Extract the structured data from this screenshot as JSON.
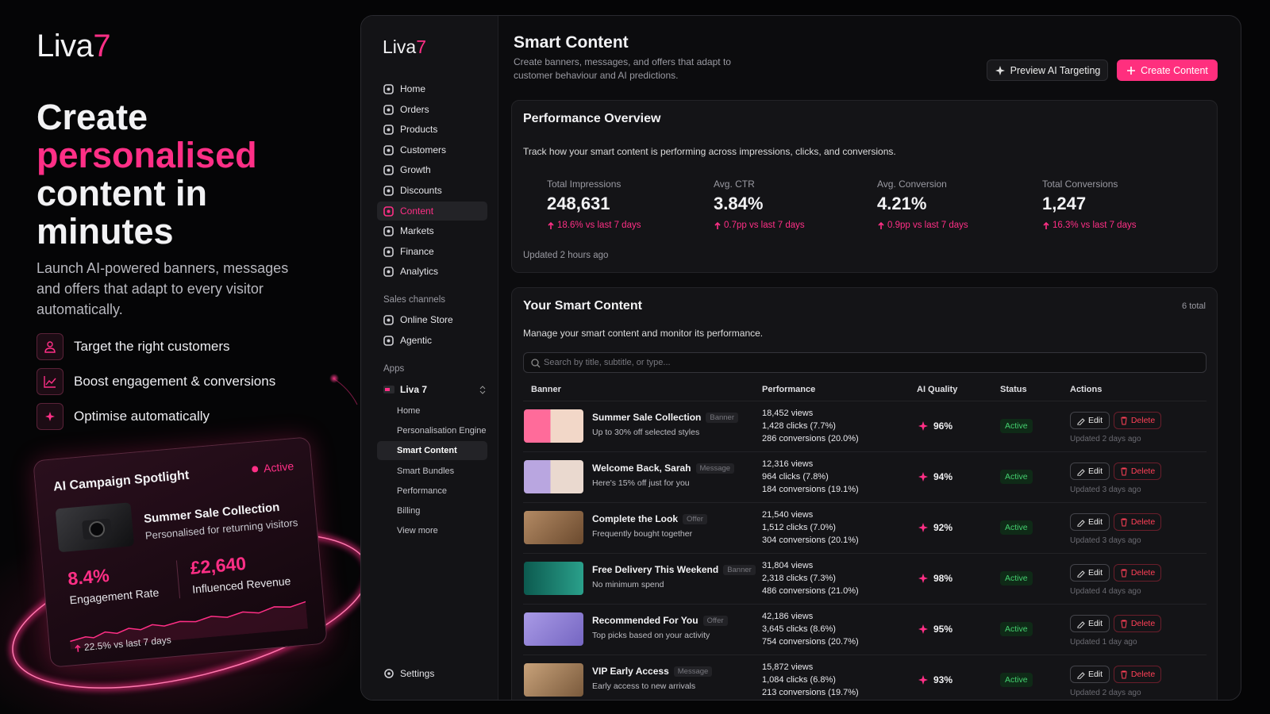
{
  "promo": {
    "logo": "Liva",
    "logo_accent": "7",
    "headline": [
      "Create",
      "personalised",
      "content in",
      "minutes"
    ],
    "description": "Launch AI-powered banners, messages and offers that adapt to every visitor automatically.",
    "features": [
      "Target the right customers",
      "Boost engagement & conversions",
      "Optimise automatically"
    ],
    "spotlight": {
      "title": "AI Campaign Spotlight",
      "status": "Active",
      "name": "Summer Sale Collection",
      "subtitle": "Personalised for returning visitors",
      "metrics": [
        {
          "value": "8.4%",
          "label": "Engagement Rate"
        },
        {
          "value": "£2,640",
          "label": "Influenced Revenue"
        }
      ],
      "change": "22.5% vs last 7 days"
    }
  },
  "panel": {
    "sidebar": {
      "logo": "Liva",
      "logo_accent": "7",
      "nav": [
        {
          "label": "Home"
        },
        {
          "label": "Orders"
        },
        {
          "label": "Products"
        },
        {
          "label": "Customers"
        },
        {
          "label": "Growth"
        },
        {
          "label": "Discounts"
        },
        {
          "label": "Content",
          "active": true
        },
        {
          "label": "Markets"
        },
        {
          "label": "Finance"
        },
        {
          "label": "Analytics"
        }
      ],
      "sales_channels": {
        "title": "Sales channels",
        "items": [
          "Online Store",
          "Agentic"
        ]
      },
      "apps": {
        "title": "Apps",
        "app": "Liva 7",
        "items": [
          {
            "label": "Home"
          },
          {
            "label": "Personalisation Engine"
          },
          {
            "label": "Smart Content",
            "active": true
          },
          {
            "label": "Smart Bundles"
          },
          {
            "label": "Performance"
          },
          {
            "label": "Billing"
          },
          {
            "label": "View more"
          }
        ]
      },
      "settings": "Settings"
    },
    "header": {
      "title": "Smart Content",
      "description": "Create banners, messages, and offers that adapt to customer behaviour and AI predictions.",
      "preview_button": "Preview AI Targeting",
      "create_button": "Create Content"
    },
    "overview": {
      "title": "Performance Overview",
      "description": "Track how your smart content is performing across impressions, clicks, and conversions.",
      "stats": [
        {
          "label": "Total Impressions",
          "value": "248,631",
          "change": "18.6% vs last 7 days"
        },
        {
          "label": "Avg. CTR",
          "value": "3.84%",
          "change": "0.7pp vs last 7 days"
        },
        {
          "label": "Avg. Conversion",
          "value": "4.21%",
          "change": "0.9pp vs last 7 days"
        },
        {
          "label": "Total Conversions",
          "value": "1,247",
          "change": "16.3% vs last 7 days"
        }
      ],
      "updated": "Updated 2 hours ago"
    },
    "content": {
      "title": "Your Smart Content",
      "total": "6 total",
      "description": "Manage your smart content and monitor its performance.",
      "search_placeholder": "Search by title, subtitle, or type...",
      "columns": [
        "Banner",
        "Performance",
        "AI Quality",
        "Status",
        "Actions"
      ],
      "actions": {
        "edit": "Edit",
        "delete": "Delete"
      },
      "rows": [
        {
          "title": "Summer Sale Collection",
          "tag": "Banner",
          "subtitle": "Up to 30% off selected styles",
          "views": "18,452 views",
          "clicks": "1,428 clicks (7.7%)",
          "conversions": "286 conversions (20.0%)",
          "quality": "96%",
          "status": "Active",
          "updated": "Updated 2 days ago"
        },
        {
          "title": "Welcome Back, Sarah",
          "tag": "Message",
          "subtitle": "Here's 15% off just for you",
          "views": "12,316 views",
          "clicks": "964 clicks (7.8%)",
          "conversions": "184 conversions (19.1%)",
          "quality": "94%",
          "status": "Active",
          "updated": "Updated 3 days ago"
        },
        {
          "title": "Complete the Look",
          "tag": "Offer",
          "subtitle": "Frequently bought together",
          "views": "21,540 views",
          "clicks": "1,512 clicks (7.0%)",
          "conversions": "304 conversions (20.1%)",
          "quality": "92%",
          "status": "Active",
          "updated": "Updated 3 days ago"
        },
        {
          "title": "Free Delivery This Weekend",
          "tag": "Banner",
          "subtitle": "No minimum spend",
          "views": "31,804 views",
          "clicks": "2,318 clicks (7.3%)",
          "conversions": "486 conversions (21.0%)",
          "quality": "98%",
          "status": "Active",
          "updated": "Updated 4 days ago"
        },
        {
          "title": "Recommended For You",
          "tag": "Offer",
          "subtitle": "Top picks based on your activity",
          "views": "42,186 views",
          "clicks": "3,645 clicks (8.6%)",
          "conversions": "754 conversions (20.7%)",
          "quality": "95%",
          "status": "Active",
          "updated": "Updated 1 day ago"
        },
        {
          "title": "VIP Early Access",
          "tag": "Message",
          "subtitle": "Early access to new arrivals",
          "views": "15,872 views",
          "clicks": "1,084 clicks (6.8%)",
          "conversions": "213 conversions (19.7%)",
          "quality": "93%",
          "status": "Active",
          "updated": "Updated 2 days ago"
        }
      ]
    }
  }
}
